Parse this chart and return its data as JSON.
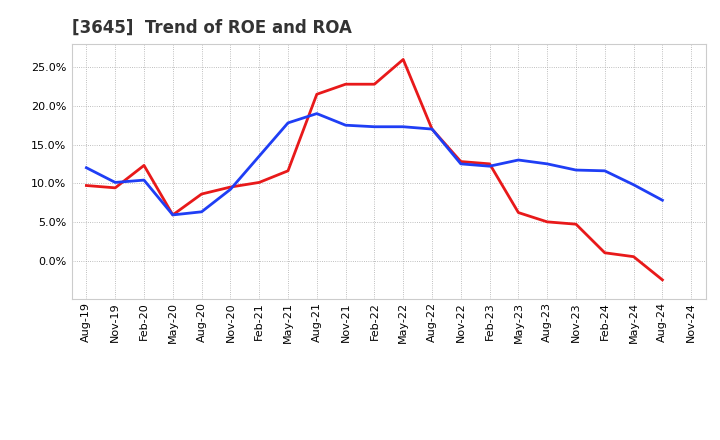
{
  "title": "[3645]  Trend of ROE and ROA",
  "x_labels": [
    "Aug-19",
    "Nov-19",
    "Feb-20",
    "May-20",
    "Aug-20",
    "Nov-20",
    "Feb-21",
    "May-21",
    "Aug-21",
    "Nov-21",
    "Feb-22",
    "May-22",
    "Aug-22",
    "Nov-22",
    "Feb-23",
    "May-23",
    "Aug-23",
    "Nov-23",
    "Feb-24",
    "May-24",
    "Aug-24",
    "Nov-24"
  ],
  "roe": [
    9.7,
    9.4,
    12.3,
    5.9,
    8.6,
    9.5,
    10.1,
    11.6,
    21.5,
    22.8,
    22.8,
    26.0,
    17.0,
    12.8,
    12.5,
    6.2,
    5.0,
    4.7,
    1.0,
    0.5,
    -2.5,
    null
  ],
  "roa": [
    12.0,
    10.1,
    10.4,
    5.9,
    6.3,
    9.2,
    13.5,
    17.8,
    19.0,
    17.5,
    17.3,
    17.3,
    17.0,
    12.5,
    12.2,
    13.0,
    12.5,
    11.7,
    11.6,
    9.8,
    7.8,
    null
  ],
  "roe_color": "#e8191a",
  "roa_color": "#1f3ef5",
  "bg_color": "#ffffff",
  "plot_bg_color": "#ffffff",
  "grid_color": "#aaaaaa",
  "ylim": [
    -5.0,
    28.0
  ],
  "yticks": [
    0.0,
    5.0,
    10.0,
    15.0,
    20.0,
    25.0
  ],
  "title_fontsize": 12,
  "legend_fontsize": 10,
  "tick_fontsize": 8
}
